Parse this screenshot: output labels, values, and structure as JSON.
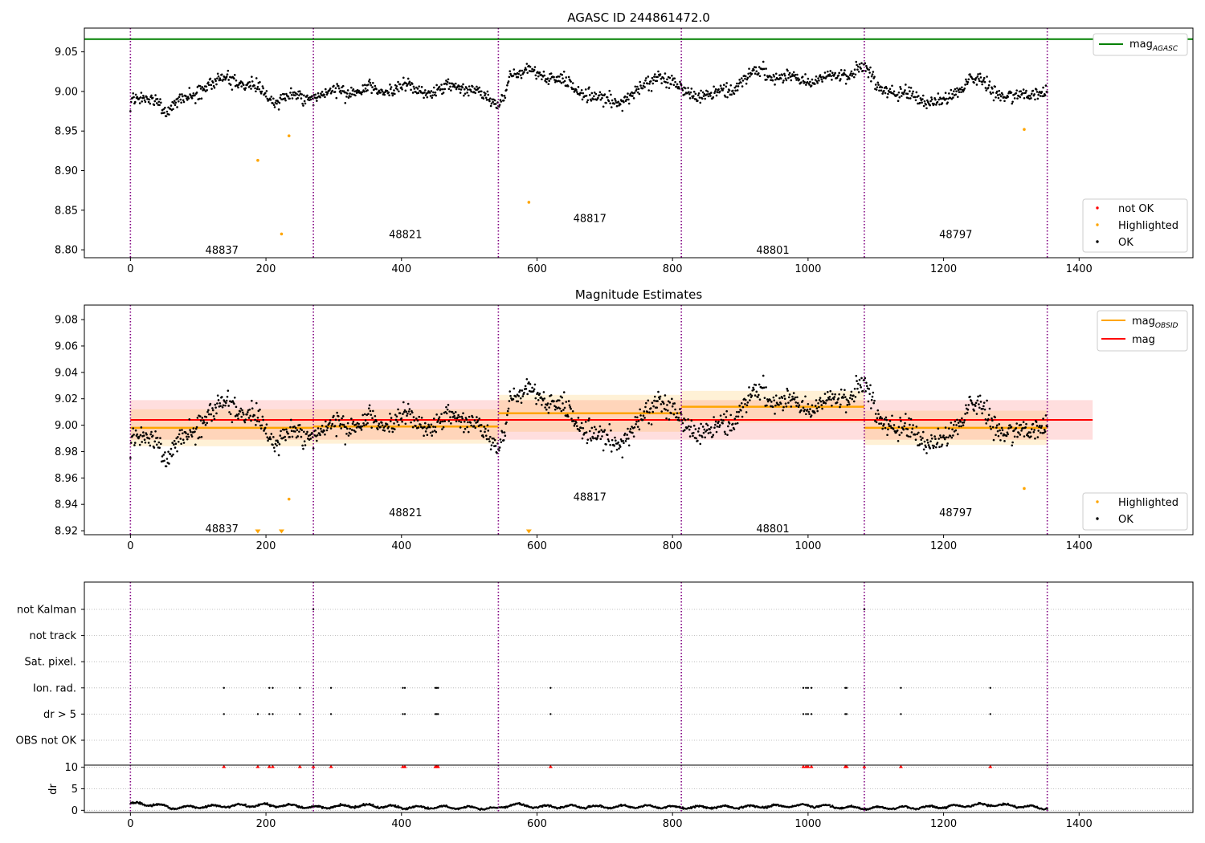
{
  "colors": {
    "agasc_line": "#008000",
    "obsid_line": "#ffa500",
    "mag_line": "#ff0000",
    "obs_boundary": "#800080",
    "ok": "#000000",
    "highlighted": "#ffa500",
    "not_ok": "#ff0000"
  },
  "chart_data": [
    {
      "type": "scatter",
      "title": "AGASC ID 244861472.0",
      "xlim": [
        -68,
        1568
      ],
      "ylim": [
        8.79,
        9.08
      ],
      "xticks": [
        "0",
        "200",
        "400",
        "600",
        "800",
        "1000",
        "1200",
        "1400"
      ],
      "yticks": [
        "8.80",
        "8.85",
        "8.90",
        "8.95",
        "9.00",
        "9.05"
      ],
      "legend_position": "top-right",
      "legend_upper": [
        {
          "label": "mag",
          "sub": "AGASC"
        }
      ],
      "legend_lower": [
        "not OK",
        "Highlighted",
        "OK"
      ],
      "mag_agasc": 9.066,
      "obs_boundaries": [
        0,
        270,
        543,
        813,
        1083,
        1353
      ],
      "obsids": [
        {
          "label": "48837",
          "x": 135,
          "y": 8.8
        },
        {
          "label": "48821",
          "x": 406,
          "y": 8.82
        },
        {
          "label": "48817",
          "x": 678,
          "y": 8.84
        },
        {
          "label": "48801",
          "x": 948,
          "y": 8.8
        },
        {
          "label": "48797",
          "x": 1218,
          "y": 8.82
        }
      ],
      "ok_profile": {
        "x": [
          0,
          40,
          55,
          90,
          140,
          175,
          210,
          260,
          300,
          350,
          400,
          450,
          500,
          543,
          560,
          590,
          640,
          700,
          740,
          780,
          813,
          860,
          900,
          930,
          1000,
          1040,
          1083,
          1100,
          1150,
          1200,
          1240,
          1280,
          1320,
          1353
        ],
        "y": [
          8.985,
          8.99,
          8.97,
          9.0,
          9.02,
          9.005,
          8.99,
          8.995,
          8.997,
          8.998,
          9.008,
          9.0,
          9.005,
          8.985,
          9.02,
          9.025,
          9.01,
          8.99,
          8.99,
          9.02,
          9.005,
          8.995,
          9.008,
          9.025,
          9.015,
          9.015,
          9.03,
          9.01,
          8.995,
          8.98,
          9.02,
          9.0,
          8.99,
          9.0
        ],
        "noise": 0.008
      },
      "highlighted": [
        {
          "x": 188,
          "y": 8.913
        },
        {
          "x": 223,
          "y": 8.82
        },
        {
          "x": 234,
          "y": 8.944
        },
        {
          "x": 588,
          "y": 8.86
        },
        {
          "x": 1319,
          "y": 8.952
        }
      ]
    },
    {
      "type": "scatter",
      "title": "Magnitude Estimates",
      "xlim": [
        -68,
        1568
      ],
      "ylim": [
        8.917,
        9.091
      ],
      "xticks": [
        "0",
        "200",
        "400",
        "600",
        "800",
        "1000",
        "1200",
        "1400"
      ],
      "yticks": [
        "8.92",
        "8.94",
        "8.96",
        "8.98",
        "9.00",
        "9.02",
        "9.04",
        "9.06",
        "9.08"
      ],
      "legend_position": "top-right",
      "legend_upper": [
        {
          "label": "mag",
          "sub": "OBSID"
        },
        {
          "label": "mag",
          "sub": ""
        }
      ],
      "legend_lower": [
        "Highlighted",
        "OK"
      ],
      "mag": {
        "value": 9.004,
        "band": [
          8.989,
          9.019
        ],
        "x": [
          0,
          1420
        ]
      },
      "obsid_mags": [
        {
          "x": [
            0,
            270
          ],
          "value": 8.998,
          "band": [
            8.984,
            9.012
          ]
        },
        {
          "x": [
            270,
            543
          ],
          "value": 8.999,
          "band": [
            8.986,
            9.012
          ]
        },
        {
          "x": [
            543,
            813
          ],
          "value": 9.009,
          "band": [
            8.995,
            9.023
          ]
        },
        {
          "x": [
            813,
            1083
          ],
          "value": 9.014,
          "band": [
            9.002,
            9.026
          ]
        },
        {
          "x": [
            1083,
            1353
          ],
          "value": 8.998,
          "band": [
            8.985,
            9.011
          ]
        }
      ],
      "obs_boundaries": [
        0,
        270,
        543,
        813,
        1083,
        1353
      ],
      "obsids": [
        {
          "label": "48837",
          "x": 135,
          "y": 8.922
        },
        {
          "label": "48821",
          "x": 406,
          "y": 8.934
        },
        {
          "label": "48817",
          "x": 678,
          "y": 8.946
        },
        {
          "label": "48801",
          "x": 948,
          "y": 8.922
        },
        {
          "label": "48797",
          "x": 1218,
          "y": 8.934
        }
      ],
      "highlighted": [
        {
          "x": 234,
          "y": 8.944
        },
        {
          "x": 1319,
          "y": 8.952
        }
      ],
      "highlighted_below": [
        188,
        223,
        588
      ]
    },
    {
      "type": "scatter",
      "title": "",
      "xlim": [
        -68,
        1568
      ],
      "xticks": [
        "0",
        "200",
        "400",
        "600",
        "800",
        "1000",
        "1200",
        "1400"
      ],
      "flag_rows": [
        "not Kalman",
        "not track",
        "Sat. pixel.",
        "Ion. rad.",
        "dr > 5",
        "OBS not OK"
      ],
      "flags": {
        "not Kalman": [
          270,
          1083
        ],
        "Ion. rad.": [
          138,
          205,
          210,
          250,
          296,
          402,
          405,
          450,
          452,
          454,
          620,
          993,
          997,
          1000,
          1005,
          1055,
          1057,
          1137,
          1269
        ],
        "dr > 5": [
          138,
          188,
          205,
          210,
          250,
          296,
          402,
          405,
          450,
          452,
          454,
          620,
          993,
          997,
          1000,
          1005,
          1055,
          1057,
          1137,
          1269
        ]
      },
      "dr_ylabel": "dr",
      "dr_ylim": [
        -0.5,
        10.5
      ],
      "dr_yticks": [
        "0",
        "5",
        "10"
      ],
      "dr_outliers_x": [
        138,
        188,
        205,
        210,
        250,
        270,
        296,
        402,
        405,
        450,
        452,
        454,
        620,
        993,
        997,
        1000,
        1005,
        1055,
        1057,
        1083,
        1137,
        1269
      ],
      "dr_profile": {
        "x": [
          0,
          40,
          60,
          100,
          140,
          200,
          250,
          270,
          300,
          350,
          400,
          450,
          500,
          543,
          560,
          600,
          650,
          700,
          750,
          813,
          900,
          1000,
          1083,
          1150,
          1200,
          1260,
          1300,
          1353
        ],
        "y": [
          1.5,
          1.3,
          0.6,
          0.8,
          1.0,
          1.2,
          1.0,
          0.6,
          0.9,
          1.1,
          0.7,
          0.7,
          0.6,
          0.4,
          1.4,
          0.8,
          0.9,
          0.8,
          0.9,
          0.7,
          0.8,
          1.1,
          0.5,
          0.6,
          0.8,
          1.3,
          1.1,
          0.5
        ],
        "noise": 0.25
      }
    }
  ]
}
